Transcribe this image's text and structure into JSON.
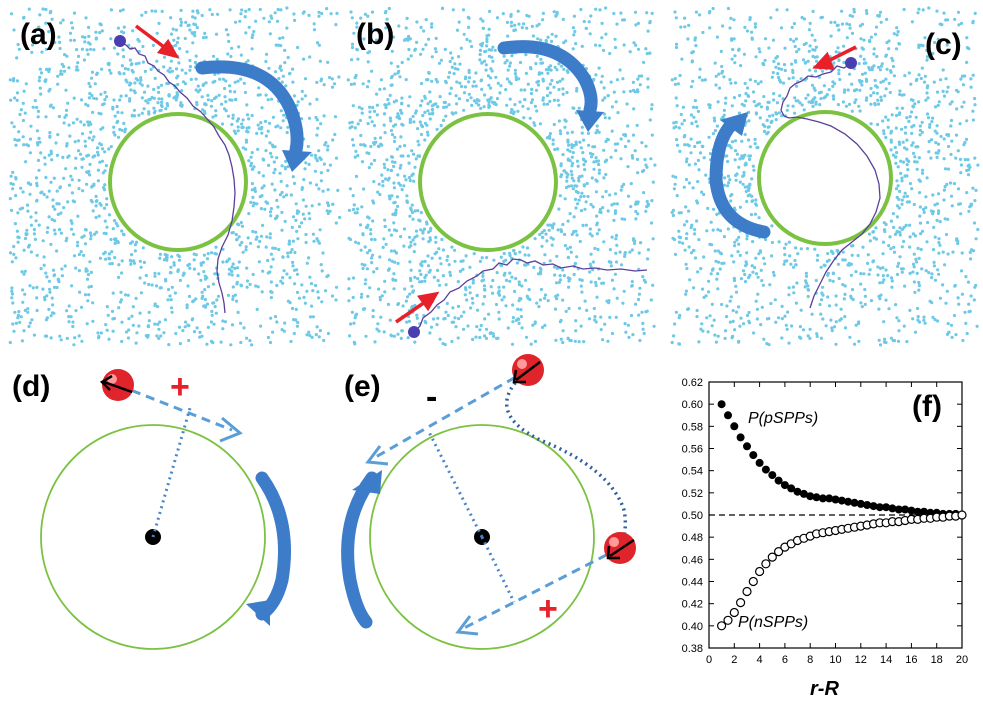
{
  "figure": {
    "panel_labels": [
      "(a)",
      "(b)",
      "(c)",
      "(d)",
      "(e)",
      "(f)"
    ],
    "sign_plus": "+",
    "sign_minus": "-"
  },
  "colors": {
    "particles": "#6ec9e6",
    "obstacle": "#7cc242",
    "trajectory": "#5a3f9b",
    "red_arrow": "#e8202a",
    "blue_arrow": "#3d7cc9",
    "dashed_arrow": "#5a9ed8",
    "dotted_line": "#4a86c8",
    "sphere": "#e0242c"
  },
  "chart_data": {
    "type": "scatter",
    "xlabel": "r-R",
    "ylabel": "",
    "xlim": [
      0,
      20
    ],
    "ylim": [
      0.38,
      0.62
    ],
    "xticks": [
      0,
      2,
      4,
      6,
      8,
      10,
      12,
      14,
      16,
      18,
      20
    ],
    "yticks": [
      "0.38",
      "0.40",
      "0.42",
      "0.44",
      "0.46",
      "0.48",
      "0.50",
      "0.52",
      "0.54",
      "0.56",
      "0.58",
      "0.60",
      "0.62"
    ],
    "reference_line": 0.5,
    "panel_label": "(f)",
    "series": [
      {
        "name": "P(pSPPs)",
        "marker": "filled",
        "x": [
          1,
          1.5,
          2,
          2.5,
          3,
          3.5,
          4,
          4.5,
          5,
          5.5,
          6,
          6.5,
          7,
          7.5,
          8,
          8.5,
          9,
          9.5,
          10,
          10.5,
          11,
          11.5,
          12,
          12.5,
          13,
          13.5,
          14,
          14.5,
          15,
          15.5,
          16,
          16.5,
          17,
          17.5,
          18,
          18.5,
          19,
          19.5,
          20
        ],
        "values": [
          0.6,
          0.59,
          0.58,
          0.57,
          0.562,
          0.554,
          0.547,
          0.541,
          0.536,
          0.531,
          0.527,
          0.524,
          0.521,
          0.519,
          0.517,
          0.516,
          0.515,
          0.515,
          0.514,
          0.513,
          0.512,
          0.511,
          0.51,
          0.509,
          0.508,
          0.507,
          0.507,
          0.506,
          0.505,
          0.505,
          0.504,
          0.503,
          0.503,
          0.502,
          0.502,
          0.501,
          0.501,
          0.501,
          0.5
        ]
      },
      {
        "name": "P(nSPPs)",
        "marker": "open",
        "x": [
          1,
          1.5,
          2,
          2.5,
          3,
          3.5,
          4,
          4.5,
          5,
          5.5,
          6,
          6.5,
          7,
          7.5,
          8,
          8.5,
          9,
          9.5,
          10,
          10.5,
          11,
          11.5,
          12,
          12.5,
          13,
          13.5,
          14,
          14.5,
          15,
          15.5,
          16,
          16.5,
          17,
          17.5,
          18,
          18.5,
          19,
          19.5,
          20
        ],
        "values": [
          0.4,
          0.405,
          0.412,
          0.421,
          0.431,
          0.44,
          0.449,
          0.456,
          0.462,
          0.467,
          0.471,
          0.474,
          0.477,
          0.479,
          0.481,
          0.483,
          0.484,
          0.485,
          0.486,
          0.487,
          0.488,
          0.489,
          0.49,
          0.491,
          0.492,
          0.493,
          0.493,
          0.494,
          0.494,
          0.495,
          0.496,
          0.496,
          0.497,
          0.497,
          0.498,
          0.498,
          0.499,
          0.499,
          0.5
        ]
      }
    ]
  }
}
